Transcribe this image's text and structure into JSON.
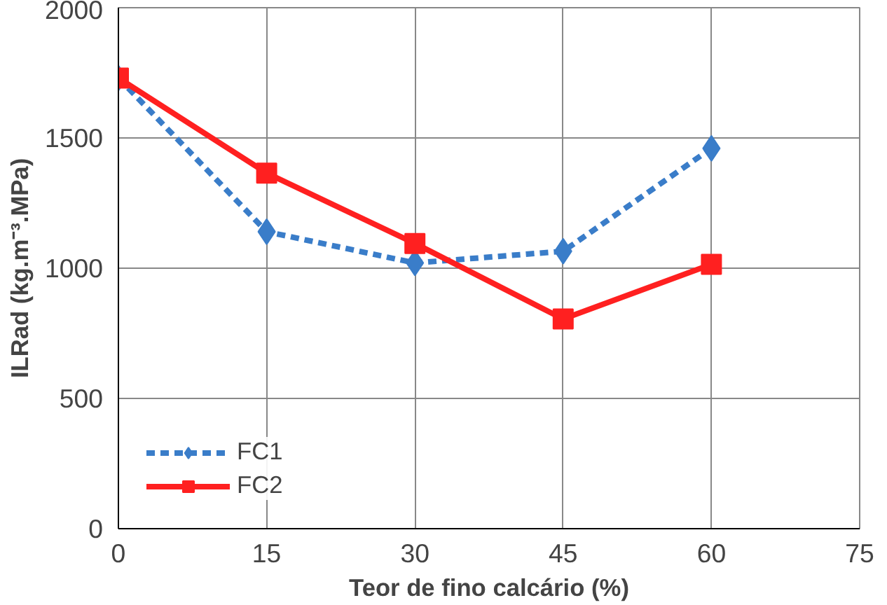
{
  "chart_data": {
    "type": "line",
    "xlabel": "Teor de fino calcário (%)",
    "ylabel": "ILRad (kg.m⁻³.MPa)",
    "x": [
      0,
      15,
      30,
      45,
      60
    ],
    "series": [
      {
        "name": "FC1",
        "color": "#3a7dc9",
        "values": [
          1730,
          1140,
          1020,
          1065,
          1460
        ],
        "marker": "diamond",
        "line_style": "dashed"
      },
      {
        "name": "FC2",
        "color": "#ff2020",
        "values": [
          1730,
          1365,
          1095,
          805,
          1015
        ],
        "marker": "square",
        "line_style": "solid"
      }
    ],
    "xlim": [
      0,
      75
    ],
    "xticks": [
      0,
      15,
      30,
      45,
      60,
      75
    ],
    "ylim": [
      0,
      2000
    ],
    "yticks": [
      0,
      500,
      1000,
      1500,
      2000
    ],
    "grid": true,
    "legend": "bottom left"
  }
}
